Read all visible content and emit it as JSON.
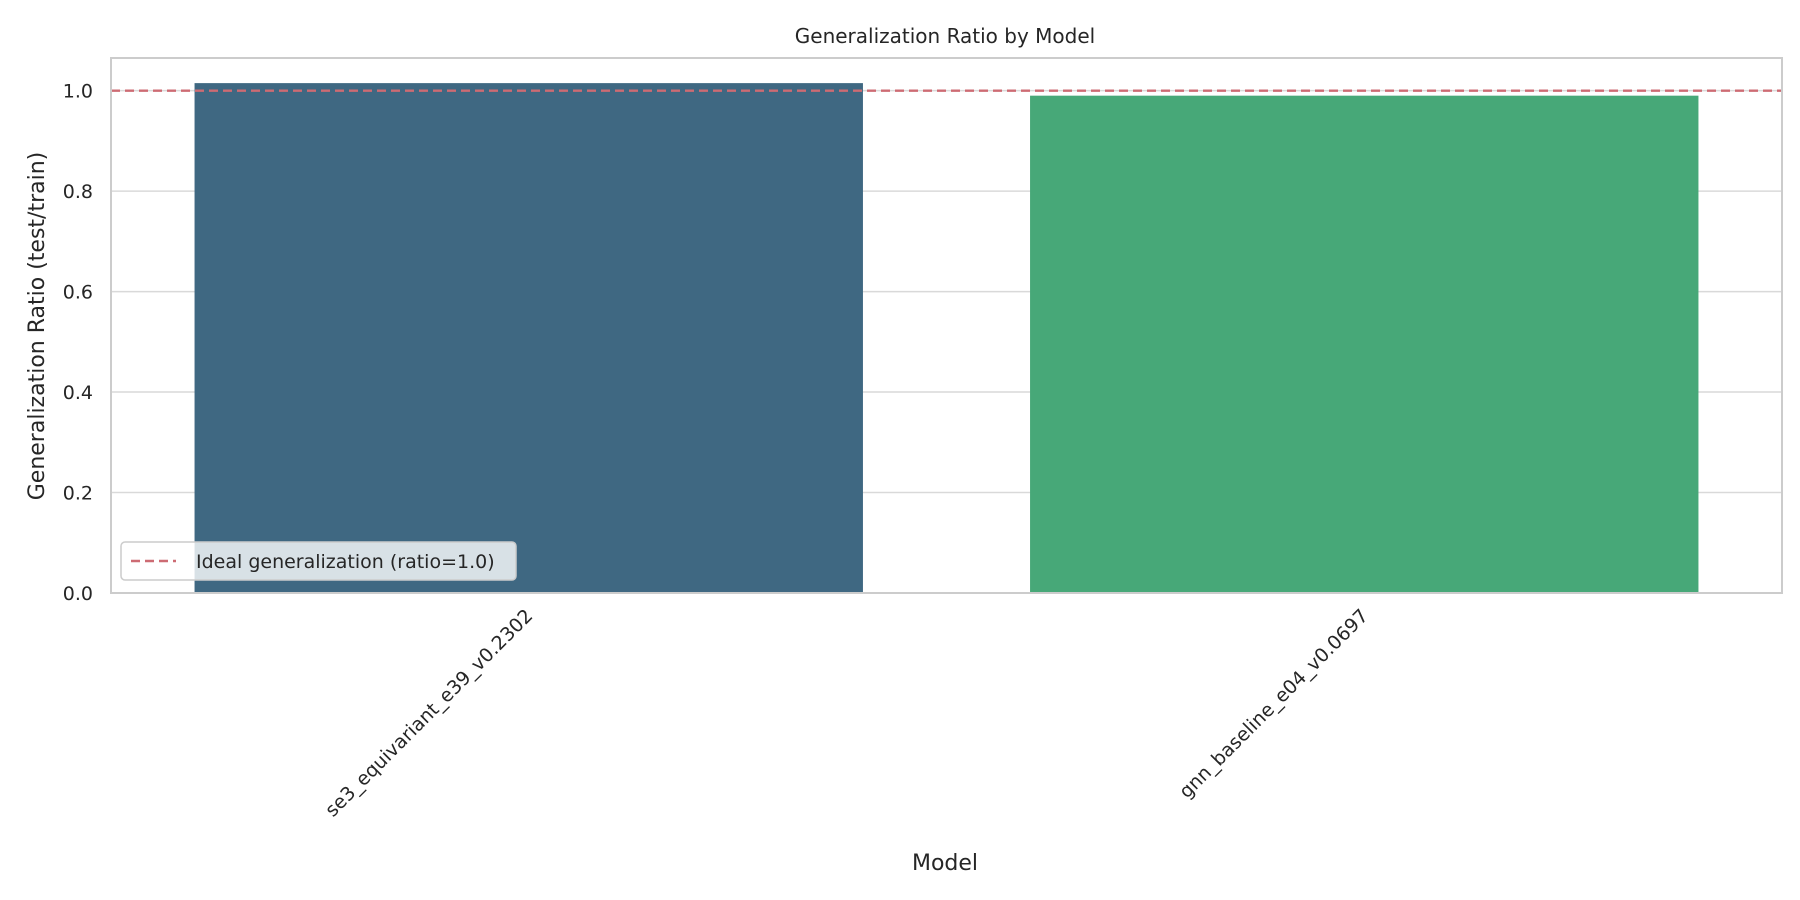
{
  "chart_data": {
    "type": "bar",
    "title": "Generalization Ratio by Model",
    "xlabel": "Model",
    "ylabel": "Generalization Ratio (test/train)",
    "categories": [
      "se3_equivariant_e39_v0.2302",
      "gnn_baseline_e04_v0.0697"
    ],
    "values": [
      1.015,
      0.99
    ],
    "colors": [
      "#3f6882",
      "#47a878"
    ],
    "ylim": [
      0,
      1.065
    ],
    "yticks": [
      0.0,
      0.2,
      0.4,
      0.6,
      0.8,
      1.0
    ],
    "ytick_labels": [
      "0.0",
      "0.2",
      "0.4",
      "0.6",
      "0.8",
      "1.0"
    ],
    "grid": true,
    "reference_line": {
      "y": 1.0,
      "style": "dashed",
      "color": "#cd6b73",
      "label": "Ideal generalization (ratio=1.0)"
    },
    "legend_position": "lower-left"
  }
}
